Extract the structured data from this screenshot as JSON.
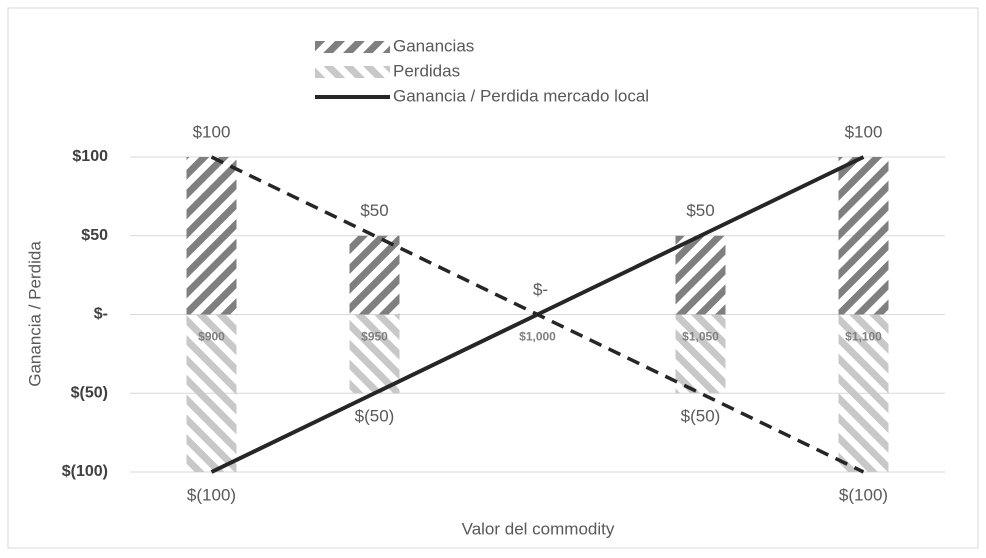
{
  "chart_data": {
    "type": "bar",
    "xlabel": "Valor del commodity",
    "ylabel": "Ganancia / Perdida",
    "categories": [
      "$900",
      "$950",
      "$1,000",
      "$1,050",
      "$1,100"
    ],
    "series": [
      {
        "name": "Ganancias",
        "type": "bar",
        "color": "#7f7f7f",
        "values": [
          100,
          50,
          0,
          50,
          100
        ],
        "value_labels": [
          "$100",
          "$50",
          "$-",
          "$50",
          "$100"
        ]
      },
      {
        "name": "Perdidas",
        "type": "bar",
        "color": "#c8c8c8",
        "values": [
          -100,
          -50,
          0,
          -50,
          -100
        ],
        "value_labels": [
          "$(100)",
          "$(50)",
          null,
          "$(50)",
          "$(100)"
        ]
      },
      {
        "name": "Ganancia / Perdida mercado local",
        "type": "line",
        "color": "#262626",
        "line_style": "solid",
        "values": [
          -100,
          -50,
          0,
          50,
          100
        ]
      },
      {
        "type": "line",
        "color": "#262626",
        "line_style": "dashed",
        "values": [
          100,
          50,
          0,
          -50,
          -100
        ]
      }
    ],
    "ylim": [
      -100,
      100
    ],
    "yticks": [
      {
        "value": 100,
        "label": "$100"
      },
      {
        "value": 50,
        "label": "$50"
      },
      {
        "value": 0,
        "label": "$-"
      },
      {
        "value": -50,
        "label": "$(50)"
      },
      {
        "value": -100,
        "label": "$(100)"
      }
    ],
    "grid": true,
    "legend": "top"
  }
}
